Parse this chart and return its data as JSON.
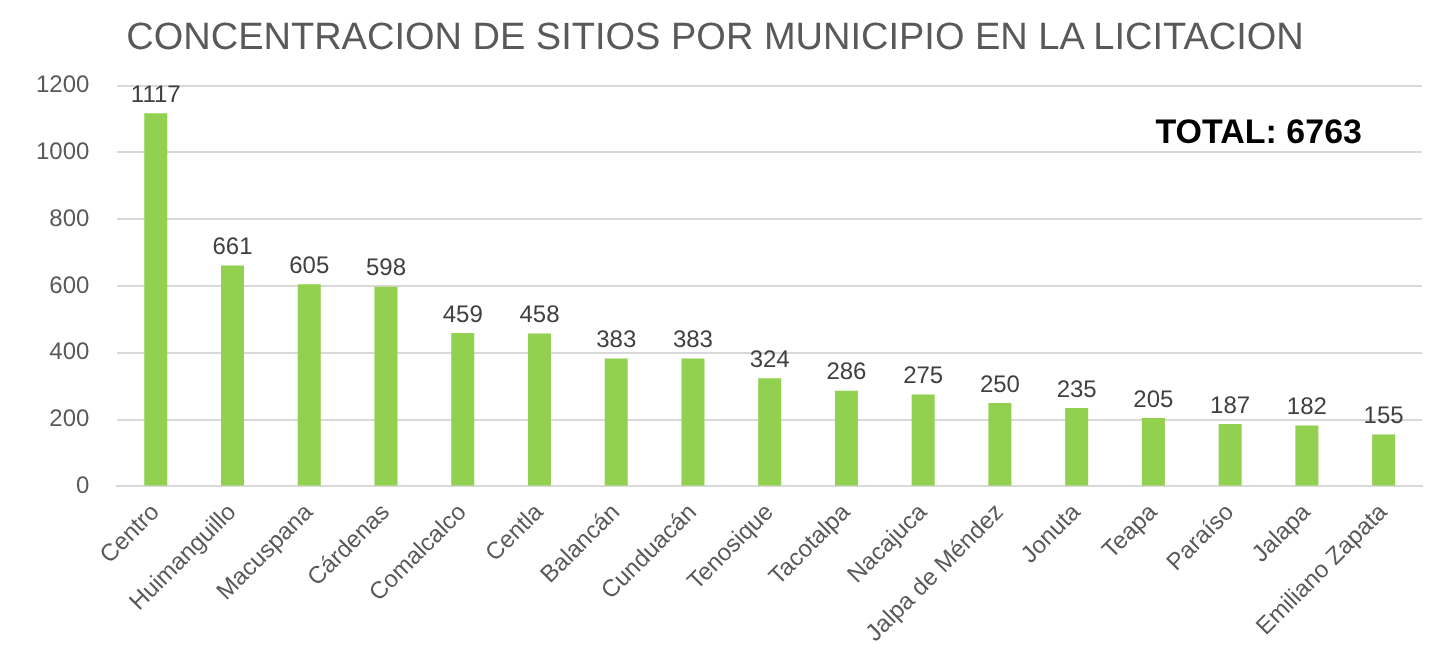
{
  "chart_data": {
    "type": "bar",
    "title": "CONCENTRACION DE SITIOS POR MUNICIPIO EN LA LICITACION",
    "categories": [
      "Centro",
      "Huimanguillo",
      "Macuspana",
      "Cárdenas",
      "Comalcalco",
      "Centla",
      "Balancán",
      "Cunduacán",
      "Tenosique",
      "Tacotalpa",
      "Nacajuca",
      "Jalpa de Méndez",
      "Jonuta",
      "Teapa",
      "Paraíso",
      "Jalapa",
      "Emiliano Zapata"
    ],
    "values": [
      1117,
      661,
      605,
      598,
      459,
      458,
      383,
      383,
      324,
      286,
      275,
      250,
      235,
      205,
      187,
      182,
      155
    ],
    "color": "#92d050",
    "ylim": [
      0,
      1200
    ],
    "yticks": [
      0,
      200,
      400,
      600,
      800,
      1000,
      1200
    ],
    "grid": "y",
    "data_labels": true,
    "annotations": [
      "TOTAL: 6763"
    ]
  }
}
